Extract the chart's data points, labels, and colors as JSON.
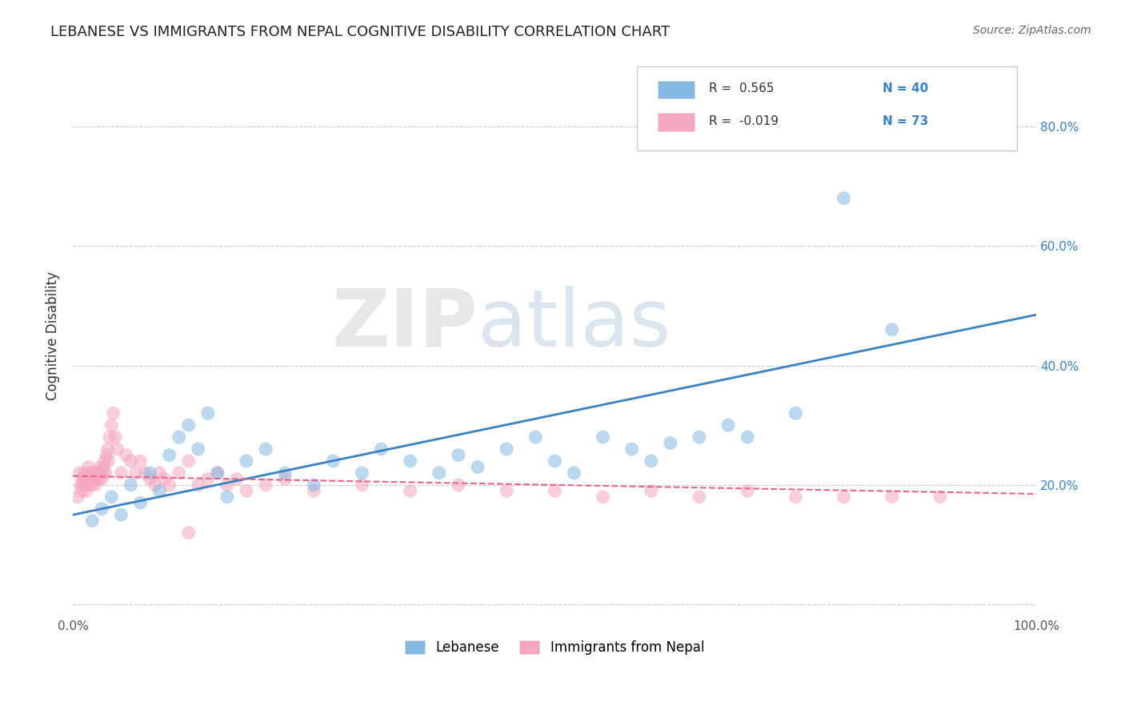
{
  "title": "LEBANESE VS IMMIGRANTS FROM NEPAL COGNITIVE DISABILITY CORRELATION CHART",
  "source": "Source: ZipAtlas.com",
  "ylabel": "Cognitive Disability",
  "legend_labels": [
    "Lebanese",
    "Immigrants from Nepal"
  ],
  "r_values": [
    0.565,
    -0.019
  ],
  "n_values": [
    40,
    73
  ],
  "scatter_blue": {
    "x": [
      2,
      3,
      4,
      5,
      6,
      7,
      8,
      9,
      10,
      11,
      12,
      13,
      14,
      15,
      16,
      18,
      20,
      22,
      25,
      27,
      30,
      32,
      35,
      38,
      40,
      42,
      45,
      48,
      50,
      52,
      55,
      58,
      60,
      62,
      65,
      68,
      70,
      75,
      80,
      85
    ],
    "y": [
      14,
      16,
      18,
      15,
      20,
      17,
      22,
      19,
      25,
      28,
      30,
      26,
      32,
      22,
      18,
      24,
      26,
      22,
      20,
      24,
      22,
      26,
      24,
      22,
      25,
      23,
      26,
      28,
      24,
      22,
      28,
      26,
      24,
      27,
      28,
      30,
      28,
      32,
      68,
      46
    ]
  },
  "scatter_pink": {
    "x": [
      0.5,
      0.7,
      0.8,
      0.9,
      1.0,
      1.1,
      1.2,
      1.3,
      1.4,
      1.5,
      1.6,
      1.7,
      1.8,
      1.9,
      2.0,
      2.1,
      2.2,
      2.3,
      2.4,
      2.5,
      2.6,
      2.7,
      2.8,
      2.9,
      3.0,
      3.1,
      3.2,
      3.3,
      3.4,
      3.5,
      3.6,
      3.7,
      3.8,
      4.0,
      4.2,
      4.4,
      4.6,
      5.0,
      5.5,
      6.0,
      6.5,
      7.0,
      7.5,
      8.0,
      8.5,
      9.0,
      9.5,
      10.0,
      11.0,
      12.0,
      13.0,
      14.0,
      15.0,
      16.0,
      17.0,
      18.0,
      20.0,
      22.0,
      25.0,
      30.0,
      35.0,
      40.0,
      45.0,
      50.0,
      55.0,
      60.0,
      65.0,
      70.0,
      75.0,
      80.0,
      85.0,
      90.0,
      12.0
    ],
    "y": [
      18,
      22,
      20,
      19,
      21,
      20,
      22,
      21,
      19,
      20,
      23,
      21,
      22,
      20,
      21,
      22,
      21,
      20,
      22,
      21,
      22,
      21,
      23,
      22,
      21,
      22,
      23,
      24,
      22,
      25,
      26,
      24,
      28,
      30,
      32,
      28,
      26,
      22,
      25,
      24,
      22,
      24,
      22,
      21,
      20,
      22,
      21,
      20,
      22,
      24,
      20,
      21,
      22,
      20,
      21,
      19,
      20,
      21,
      19,
      20,
      19,
      20,
      19,
      19,
      18,
      19,
      18,
      19,
      18,
      18,
      18,
      18,
      12
    ]
  },
  "blue_line": {
    "x0": 0.0,
    "x1": 100.0,
    "y0": 15.0,
    "y1": 48.5
  },
  "pink_line": {
    "x0": 0.0,
    "x1": 100.0,
    "y0": 21.5,
    "y1": 18.5
  },
  "xlim": [
    0.0,
    100.0
  ],
  "ylim": [
    -2.0,
    92.0
  ],
  "yticks": [
    0,
    20,
    40,
    60,
    80
  ],
  "ytick_labels_left": [
    "",
    "",
    "",
    "",
    ""
  ],
  "ytick_labels_right": [
    "",
    "20.0%",
    "40.0%",
    "60.0%",
    "80.0%"
  ],
  "xticks": [
    0,
    20,
    40,
    60,
    80,
    100
  ],
  "xtick_labels": [
    "0.0%",
    "",
    "",
    "",
    "",
    "100.0%"
  ],
  "grid_color": "#cccccc",
  "blue_color": "#85b8e0",
  "pink_color": "#f4a7bf",
  "blue_line_color": "#3b82c4",
  "pink_line_color": "#e8648a",
  "watermark_text": "ZIPatlas",
  "background_color": "#ffffff"
}
